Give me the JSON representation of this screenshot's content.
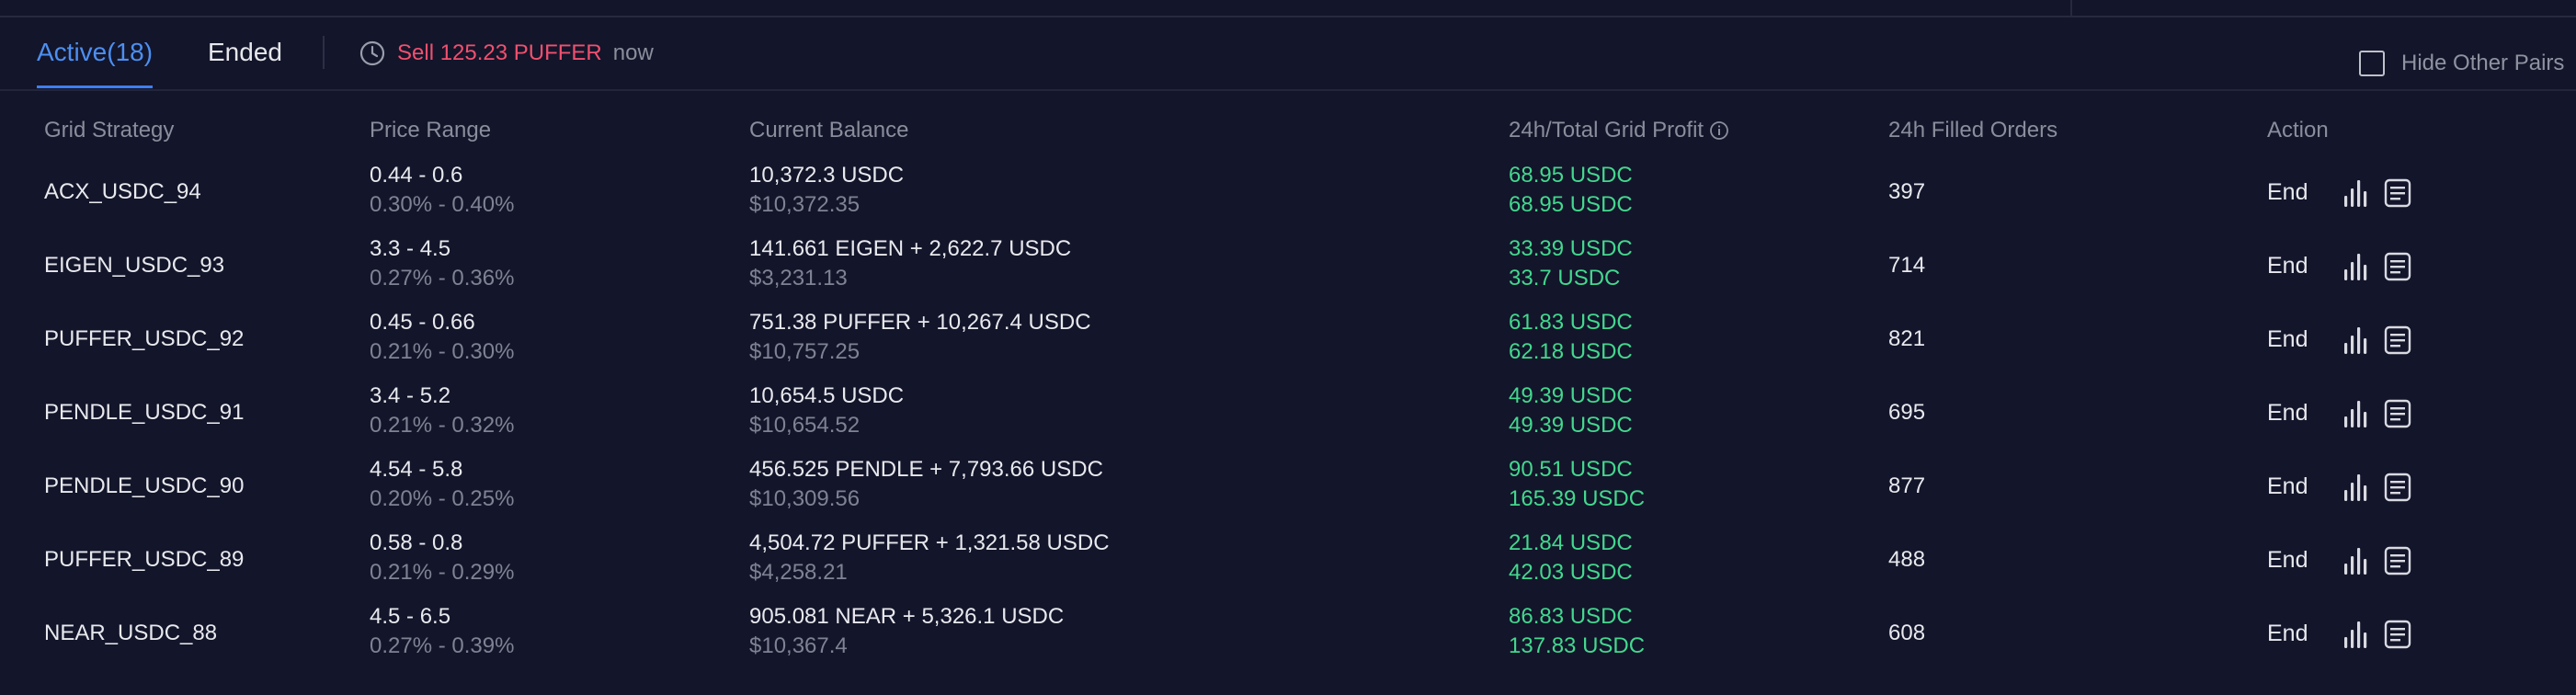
{
  "tabs": {
    "active_label": "Active(18)",
    "ended_label": "Ended"
  },
  "notice": {
    "sell_text": "Sell 125.23 PUFFER",
    "time_text": "now",
    "icon": "clock-icon"
  },
  "hide_other_pairs": {
    "label": "Hide Other Pairs",
    "checked": false
  },
  "columns": {
    "strategy": "Grid Strategy",
    "price_range": "Price Range",
    "balance": "Current Balance",
    "profit": "24h/Total Grid Profit",
    "filled": "24h Filled Orders",
    "action": "Action"
  },
  "colors": {
    "background": "#13152a",
    "accent_blue": "#4d8ff0",
    "profit_green": "#43d88e",
    "sell_red": "#f0506e"
  },
  "rows": [
    {
      "name": "ACX_USDC_94",
      "range": "0.44 - 0.6",
      "range_pct": "0.30% - 0.40%",
      "balance": "10,372.3 USDC",
      "balance_usd": "$10,372.35",
      "profit_24h": "68.95 USDC",
      "profit_total": "68.95 USDC",
      "filled": "397",
      "action": "End"
    },
    {
      "name": "EIGEN_USDC_93",
      "range": "3.3 - 4.5",
      "range_pct": "0.27% - 0.36%",
      "balance": "141.661 EIGEN + 2,622.7 USDC",
      "balance_usd": "$3,231.13",
      "profit_24h": "33.39 USDC",
      "profit_total": "33.7 USDC",
      "filled": "714",
      "action": "End"
    },
    {
      "name": "PUFFER_USDC_92",
      "range": "0.45 - 0.66",
      "range_pct": "0.21% - 0.30%",
      "balance": "751.38 PUFFER + 10,267.4 USDC",
      "balance_usd": "$10,757.25",
      "profit_24h": "61.83 USDC",
      "profit_total": "62.18 USDC",
      "filled": "821",
      "action": "End"
    },
    {
      "name": "PENDLE_USDC_91",
      "range": "3.4 - 5.2",
      "range_pct": "0.21% - 0.32%",
      "balance": "10,654.5 USDC",
      "balance_usd": "$10,654.52",
      "profit_24h": "49.39 USDC",
      "profit_total": "49.39 USDC",
      "filled": "695",
      "action": "End"
    },
    {
      "name": "PENDLE_USDC_90",
      "range": "4.54 - 5.8",
      "range_pct": "0.20% - 0.25%",
      "balance": "456.525 PENDLE + 7,793.66 USDC",
      "balance_usd": "$10,309.56",
      "profit_24h": "90.51 USDC",
      "profit_total": "165.39 USDC",
      "filled": "877",
      "action": "End"
    },
    {
      "name": "PUFFER_USDC_89",
      "range": "0.58 - 0.8",
      "range_pct": "0.21% - 0.29%",
      "balance": "4,504.72 PUFFER + 1,321.58 USDC",
      "balance_usd": "$4,258.21",
      "profit_24h": "21.84 USDC",
      "profit_total": "42.03 USDC",
      "filled": "488",
      "action": "End"
    },
    {
      "name": "NEAR_USDC_88",
      "range": "4.5 - 6.5",
      "range_pct": "0.27% - 0.39%",
      "balance": "905.081 NEAR + 5,326.1 USDC",
      "balance_usd": "$10,367.4",
      "profit_24h": "86.83 USDC",
      "profit_total": "137.83 USDC",
      "filled": "608",
      "action": "End"
    }
  ]
}
